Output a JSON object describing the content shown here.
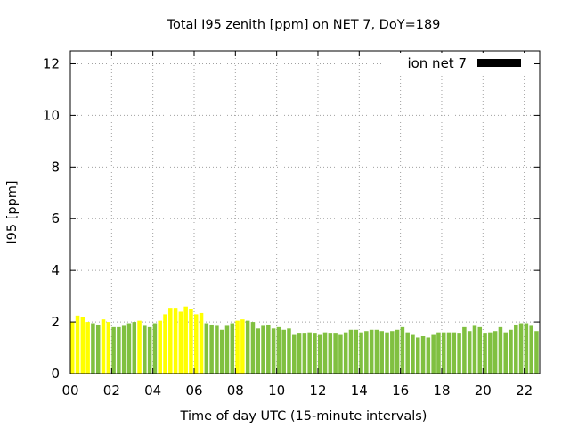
{
  "chart_data": {
    "type": "bar",
    "title": "Total I95 zenith [ppm] on NET 7, DoY=189",
    "xlabel": "Time of day UTC (15-minute intervals)",
    "ylabel": "I95 [ppm]",
    "xlim": [
      0,
      22.75
    ],
    "ylim": [
      0,
      12.5
    ],
    "grid": true,
    "legend": {
      "position": "top-right",
      "label": "ion net 7",
      "color": "#000000"
    },
    "x_ticks": [
      "00",
      "02",
      "04",
      "06",
      "08",
      "10",
      "12",
      "14",
      "16",
      "18",
      "20",
      "22"
    ],
    "y_ticks": [
      "0",
      "2",
      "4",
      "6",
      "8",
      "10",
      "12"
    ],
    "colors": {
      "yellow": "#ffff00",
      "green": "#80c040"
    },
    "series": [
      {
        "values": [
          [
            0.0,
            2.0,
            "yellow"
          ],
          [
            0.25,
            2.25,
            "yellow"
          ],
          [
            0.5,
            2.2,
            "yellow"
          ],
          [
            0.75,
            2.0,
            "yellow"
          ],
          [
            1.0,
            1.95,
            "green"
          ],
          [
            1.25,
            1.9,
            "green"
          ],
          [
            1.5,
            2.1,
            "yellow"
          ],
          [
            1.75,
            2.0,
            "yellow"
          ],
          [
            2.0,
            1.8,
            "green"
          ],
          [
            2.25,
            1.8,
            "green"
          ],
          [
            2.5,
            1.85,
            "green"
          ],
          [
            2.75,
            1.95,
            "green"
          ],
          [
            3.0,
            2.0,
            "green"
          ],
          [
            3.25,
            2.05,
            "yellow"
          ],
          [
            3.5,
            1.85,
            "green"
          ],
          [
            3.75,
            1.8,
            "green"
          ],
          [
            4.0,
            1.95,
            "green"
          ],
          [
            4.25,
            2.05,
            "yellow"
          ],
          [
            4.5,
            2.3,
            "yellow"
          ],
          [
            4.75,
            2.55,
            "yellow"
          ],
          [
            5.0,
            2.55,
            "yellow"
          ],
          [
            5.25,
            2.4,
            "yellow"
          ],
          [
            5.5,
            2.6,
            "yellow"
          ],
          [
            5.75,
            2.5,
            "yellow"
          ],
          [
            6.0,
            2.3,
            "yellow"
          ],
          [
            6.25,
            2.35,
            "yellow"
          ],
          [
            6.5,
            1.95,
            "green"
          ],
          [
            6.75,
            1.9,
            "green"
          ],
          [
            7.0,
            1.85,
            "green"
          ],
          [
            7.25,
            1.7,
            "green"
          ],
          [
            7.5,
            1.85,
            "green"
          ],
          [
            7.75,
            1.95,
            "green"
          ],
          [
            8.0,
            2.05,
            "yellow"
          ],
          [
            8.25,
            2.1,
            "yellow"
          ],
          [
            8.5,
            2.05,
            "green"
          ],
          [
            8.75,
            2.0,
            "green"
          ],
          [
            9.0,
            1.75,
            "green"
          ],
          [
            9.25,
            1.85,
            "green"
          ],
          [
            9.5,
            1.9,
            "green"
          ],
          [
            9.75,
            1.75,
            "green"
          ],
          [
            10.0,
            1.8,
            "green"
          ],
          [
            10.25,
            1.7,
            "green"
          ],
          [
            10.5,
            1.75,
            "green"
          ],
          [
            10.75,
            1.5,
            "green"
          ],
          [
            11.0,
            1.55,
            "green"
          ],
          [
            11.25,
            1.55,
            "green"
          ],
          [
            11.5,
            1.6,
            "green"
          ],
          [
            11.75,
            1.55,
            "green"
          ],
          [
            12.0,
            1.5,
            "green"
          ],
          [
            12.25,
            1.6,
            "green"
          ],
          [
            12.5,
            1.55,
            "green"
          ],
          [
            12.75,
            1.55,
            "green"
          ],
          [
            13.0,
            1.5,
            "green"
          ],
          [
            13.25,
            1.6,
            "green"
          ],
          [
            13.5,
            1.7,
            "green"
          ],
          [
            13.75,
            1.7,
            "green"
          ],
          [
            14.0,
            1.6,
            "green"
          ],
          [
            14.25,
            1.65,
            "green"
          ],
          [
            14.5,
            1.7,
            "green"
          ],
          [
            14.75,
            1.7,
            "green"
          ],
          [
            15.0,
            1.65,
            "green"
          ],
          [
            15.25,
            1.6,
            "green"
          ],
          [
            15.5,
            1.65,
            "green"
          ],
          [
            15.75,
            1.7,
            "green"
          ],
          [
            16.0,
            1.8,
            "green"
          ],
          [
            16.25,
            1.6,
            "green"
          ],
          [
            16.5,
            1.5,
            "green"
          ],
          [
            16.75,
            1.4,
            "green"
          ],
          [
            17.0,
            1.45,
            "green"
          ],
          [
            17.25,
            1.4,
            "green"
          ],
          [
            17.5,
            1.5,
            "green"
          ],
          [
            17.75,
            1.6,
            "green"
          ],
          [
            18.0,
            1.6,
            "green"
          ],
          [
            18.25,
            1.6,
            "green"
          ],
          [
            18.5,
            1.6,
            "green"
          ],
          [
            18.75,
            1.55,
            "green"
          ],
          [
            19.0,
            1.8,
            "green"
          ],
          [
            19.25,
            1.65,
            "green"
          ],
          [
            19.5,
            1.85,
            "green"
          ],
          [
            19.75,
            1.8,
            "green"
          ],
          [
            20.0,
            1.55,
            "green"
          ],
          [
            20.25,
            1.6,
            "green"
          ],
          [
            20.5,
            1.65,
            "green"
          ],
          [
            20.75,
            1.8,
            "green"
          ],
          [
            21.0,
            1.6,
            "green"
          ],
          [
            21.25,
            1.7,
            "green"
          ],
          [
            21.5,
            1.9,
            "green"
          ],
          [
            21.75,
            1.95,
            "green"
          ],
          [
            22.0,
            1.95,
            "green"
          ],
          [
            22.25,
            1.85,
            "green"
          ],
          [
            22.5,
            1.65,
            "green"
          ]
        ]
      }
    ]
  }
}
